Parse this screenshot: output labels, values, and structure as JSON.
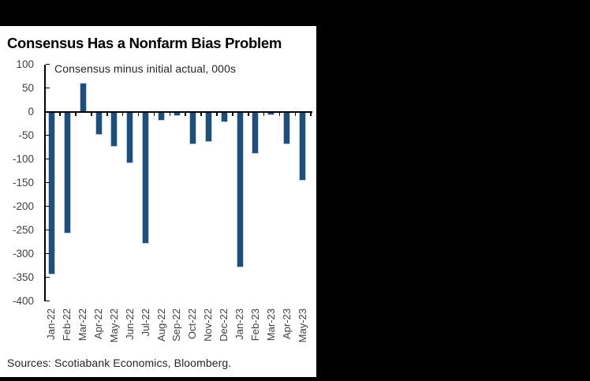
{
  "window": {
    "background_color": "#000000",
    "panel_color": "#FFFFFF"
  },
  "chart": {
    "title": "Consensus Has a Nonfarm Bias Problem",
    "subtitle": "Consensus minus initial actual, 000s",
    "source": "Sources: Scotiabank Economics, Bloomberg.",
    "bar_color": "#1F4E79",
    "bar_edge_color": "#BFD0E4",
    "axis_color": "#000000",
    "tick_label_color": "#404040",
    "title_color": "#000000",
    "text_color": "#262626"
  },
  "chart_data": {
    "type": "bar",
    "title": "Consensus Has a Nonfarm Bias Problem",
    "subtitle": "Consensus minus initial actual, 000s",
    "categories": [
      "Jan-22",
      "Feb-22",
      "Mar-22",
      "Apr-22",
      "May-22",
      "Jun-22",
      "Jul-22",
      "Aug-22",
      "Sep-22",
      "Oct-22",
      "Nov-22",
      "Dec-22",
      "Jan-23",
      "Feb-23",
      "Mar-23",
      "Apr-23",
      "May-23"
    ],
    "values": [
      -342,
      -255,
      59,
      -48,
      -72,
      -107,
      -278,
      -17,
      -8,
      -68,
      -63,
      -20,
      -328,
      -87,
      -6,
      -68,
      -144
    ],
    "xlabel": "",
    "ylabel": "",
    "ylim": [
      -400,
      100
    ],
    "yticks": [
      100,
      50,
      0,
      -50,
      -100,
      -150,
      -200,
      -250,
      -300,
      -350,
      -400
    ],
    "grid": false,
    "legend": "none",
    "x_tick_rotation": 90,
    "source": "Sources: Scotiabank Economics, Bloomberg."
  }
}
